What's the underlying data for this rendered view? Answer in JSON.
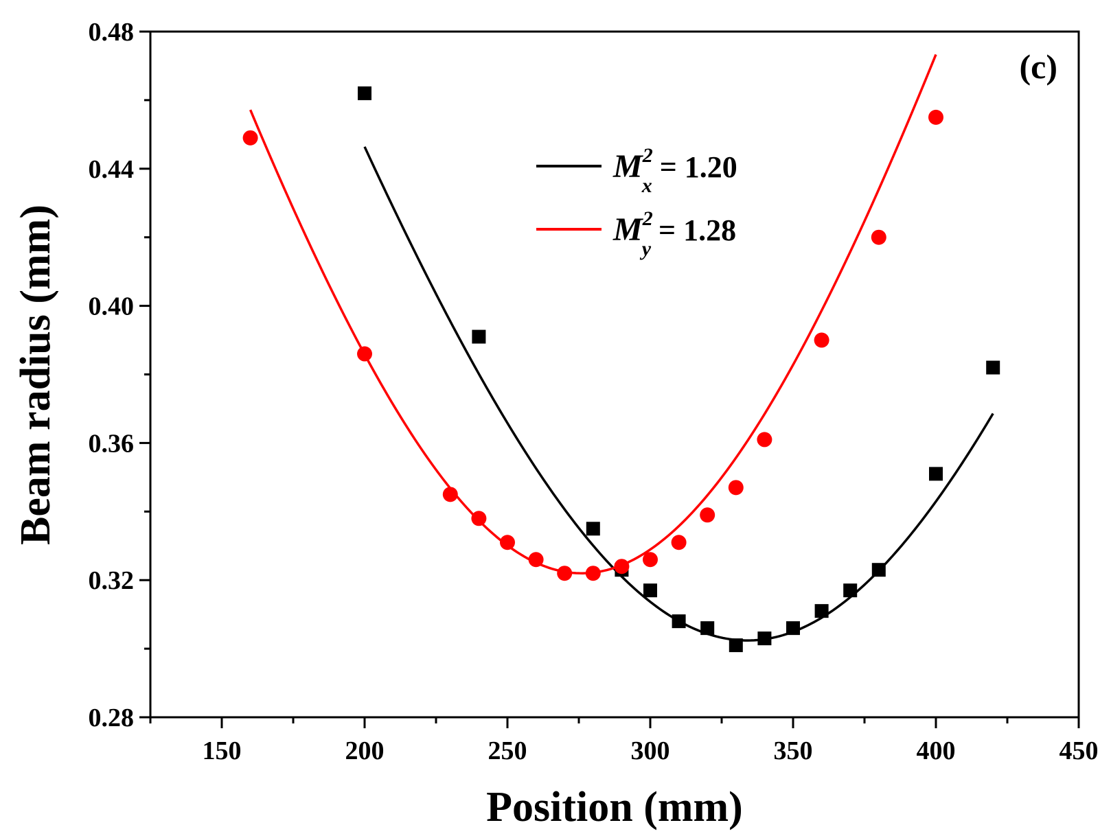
{
  "chart_data": {
    "type": "scatter",
    "panel_label": "(c)",
    "xlabel": "Position (mm)",
    "ylabel": "Beam radius (mm)",
    "xlim": [
      125,
      450
    ],
    "ylim": [
      0.28,
      0.48
    ],
    "xticks": [
      150,
      200,
      250,
      300,
      350,
      400,
      450
    ],
    "yticks": [
      0.28,
      0.32,
      0.36,
      0.4,
      0.44,
      0.48
    ],
    "ytick_labels": [
      "0.28",
      "0.32",
      "0.36",
      "0.40",
      "0.44",
      "0.48"
    ],
    "grid": false,
    "legend_position": "upper-center",
    "series": [
      {
        "name": "M_x^2 = 1.20",
        "legend": {
          "base": "M",
          "sup": "2",
          "sub": "x",
          "value": " = 1.20"
        },
        "color": "#000000",
        "marker": "square",
        "x": [
          200,
          240,
          280,
          290,
          300,
          310,
          320,
          330,
          340,
          350,
          360,
          370,
          380,
          400,
          420
        ],
        "y": [
          0.462,
          0.391,
          0.335,
          0.323,
          0.317,
          0.308,
          0.306,
          0.301,
          0.303,
          0.306,
          0.311,
          0.317,
          0.323,
          0.351,
          0.382
        ],
        "fit": {
          "w0": 0.3024,
          "z0": 334,
          "zr": 123.4
        }
      },
      {
        "name": "M_y^2 = 1.28",
        "legend": {
          "base": "M",
          "sup": "2",
          "sub": "y",
          "value": " = 1.28"
        },
        "color": "#ff0000",
        "marker": "circle",
        "x": [
          160,
          200,
          230,
          240,
          250,
          260,
          270,
          280,
          290,
          300,
          310,
          320,
          330,
          340,
          360,
          380,
          400
        ],
        "y": [
          0.449,
          0.386,
          0.345,
          0.338,
          0.331,
          0.326,
          0.322,
          0.322,
          0.324,
          0.326,
          0.331,
          0.339,
          0.347,
          0.361,
          0.39,
          0.42,
          0.455
        ],
        "fit": {
          "w0": 0.322,
          "z0": 276,
          "zr": 115.1
        }
      }
    ]
  }
}
